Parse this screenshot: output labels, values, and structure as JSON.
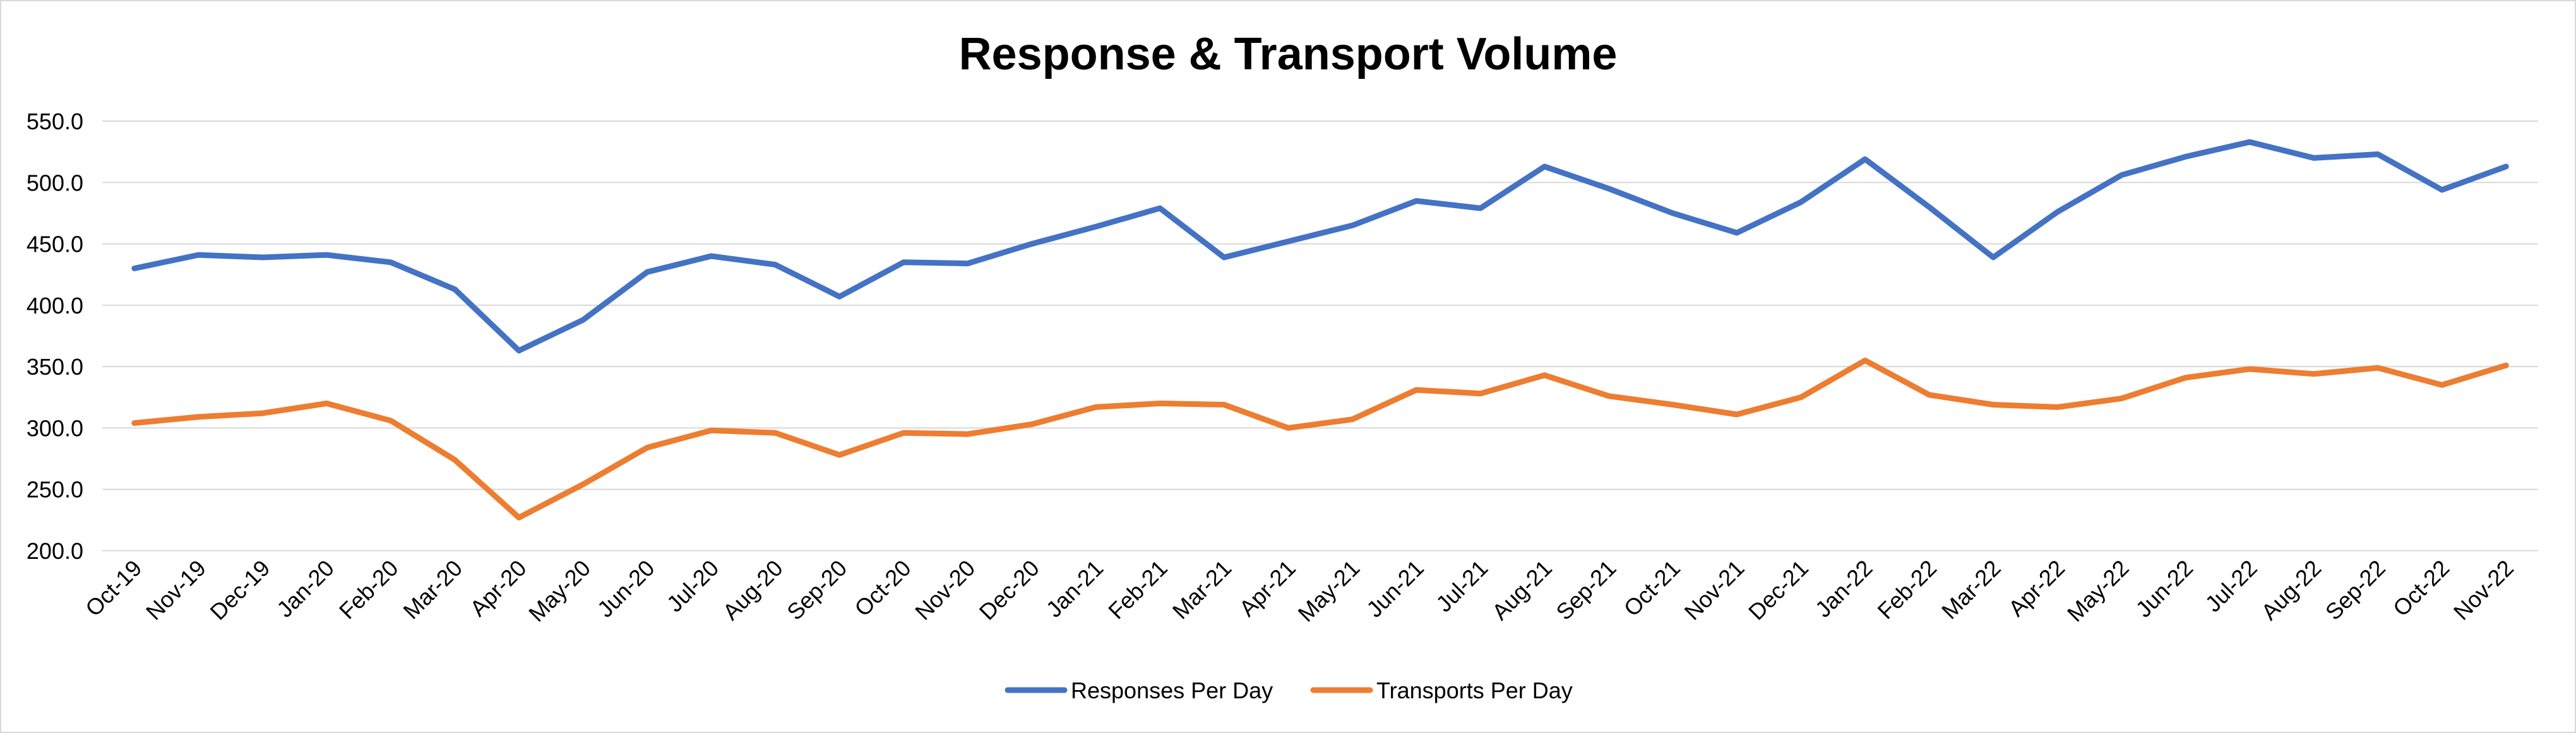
{
  "chart_data": {
    "type": "line",
    "title": "Response & Transport Volume",
    "xlabel": "",
    "ylabel": "",
    "ylim": [
      200,
      550
    ],
    "yticks": [
      "200.0",
      "250.0",
      "300.0",
      "350.0",
      "400.0",
      "450.0",
      "500.0",
      "550.0"
    ],
    "grid": true,
    "legend_position": "bottom",
    "categories": [
      "Oct-19",
      "Nov-19",
      "Dec-19",
      "Jan-20",
      "Feb-20",
      "Mar-20",
      "Apr-20",
      "May-20",
      "Jun-20",
      "Jul-20",
      "Aug-20",
      "Sep-20",
      "Oct-20",
      "Nov-20",
      "Dec-20",
      "Jan-21",
      "Feb-21",
      "Mar-21",
      "Apr-21",
      "May-21",
      "Jun-21",
      "Jul-21",
      "Aug-21",
      "Sep-21",
      "Oct-21",
      "Nov-21",
      "Dec-21",
      "Jan-22",
      "Feb-22",
      "Mar-22",
      "Apr-22",
      "May-22",
      "Jun-22",
      "Jul-22",
      "Aug-22",
      "Sep-22",
      "Oct-22",
      "Nov-22"
    ],
    "series": [
      {
        "name": "Responses Per Day",
        "color": "#4472c4",
        "values": [
          430,
          441,
          439,
          441,
          435,
          413,
          363,
          388,
          427,
          440,
          433,
          407,
          435,
          434,
          450,
          464,
          479,
          439,
          452,
          465,
          485,
          479,
          513,
          495,
          475,
          459,
          484,
          519,
          480,
          439,
          476,
          506,
          521,
          533,
          520,
          523,
          494,
          513
        ]
      },
      {
        "name": "Transports Per Day",
        "color": "#ed7d31",
        "values": [
          304,
          309,
          312,
          320,
          306,
          274,
          227,
          254,
          284,
          298,
          296,
          278,
          296,
          295,
          303,
          317,
          320,
          319,
          300,
          307,
          331,
          328,
          343,
          326,
          319,
          311,
          325,
          355,
          327,
          319,
          317,
          324,
          341,
          348,
          344,
          349,
          335,
          351
        ]
      }
    ]
  }
}
